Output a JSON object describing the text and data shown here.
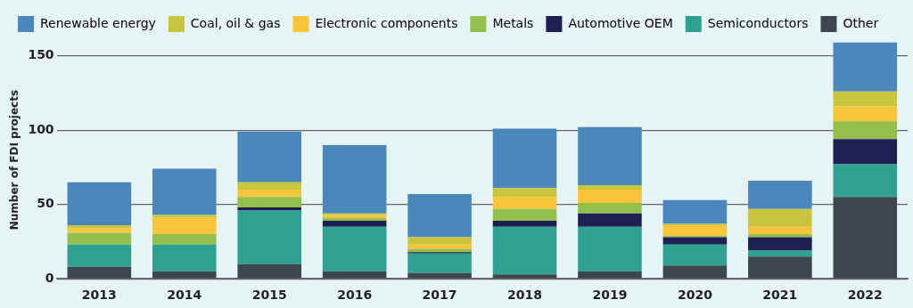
{
  "chart_data": {
    "type": "bar",
    "stacked": true,
    "ylabel": "Number of FDI projects",
    "categories": [
      "2013",
      "2014",
      "2015",
      "2016",
      "2017",
      "2018",
      "2019",
      "2020",
      "2021",
      "2022"
    ],
    "series": [
      {
        "name": "Other",
        "color": "#3b474c",
        "values": [
          8,
          5,
          10,
          5,
          4,
          3,
          5,
          9,
          15,
          55
        ]
      },
      {
        "name": "Semiconductors",
        "color": "#2fa191",
        "values": [
          15,
          18,
          36,
          30,
          13,
          32,
          30,
          14,
          4,
          22
        ]
      },
      {
        "name": "Automotive OEM",
        "color": "#1f1f52",
        "values": [
          0,
          0,
          2,
          4,
          1,
          4,
          9,
          5,
          9,
          17
        ]
      },
      {
        "name": "Metals",
        "color": "#93c04a",
        "values": [
          8,
          7,
          7,
          2,
          2,
          8,
          7,
          1,
          2,
          12
        ]
      },
      {
        "name": "Electronic components",
        "color": "#f8c43a",
        "values": [
          3,
          11,
          5,
          2,
          3,
          8,
          9,
          7,
          5,
          10
        ]
      },
      {
        "name": "Coal, oil & gas",
        "color": "#c8c43c",
        "values": [
          2,
          2,
          5,
          1,
          5,
          6,
          3,
          1,
          12,
          10
        ]
      },
      {
        "name": "Renewable energy",
        "color": "#4a88bb",
        "values": [
          29,
          31,
          34,
          46,
          29,
          40,
          39,
          16,
          19,
          33
        ]
      }
    ],
    "ylim": [
      0,
      160
    ],
    "yticks": [
      0,
      50,
      100,
      150
    ],
    "grid": "y",
    "legend": "top"
  }
}
